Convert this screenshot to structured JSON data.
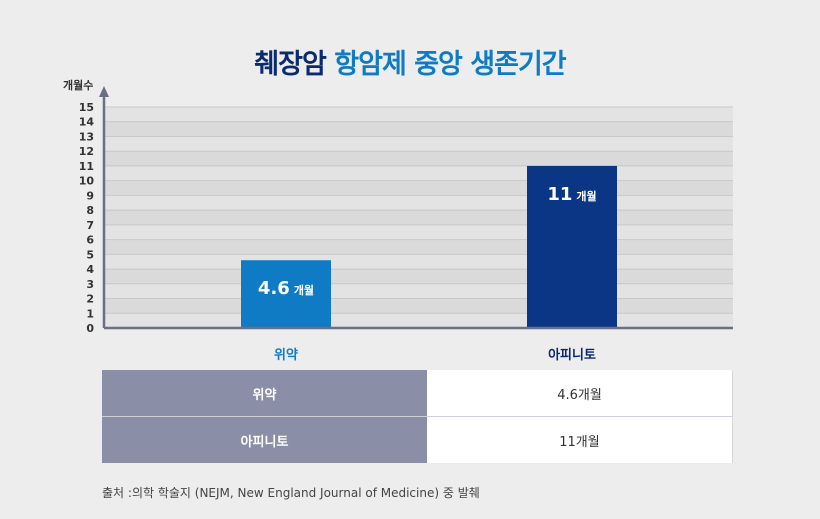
{
  "title": {
    "part1": "췌장암",
    "part2": "항암제 중앙 생존기간"
  },
  "colors": {
    "bar1": "#0f7bc4",
    "bar2": "#0b3686",
    "label1": "#0f7bc4",
    "label2": "#0b2a6f",
    "table_head": "#8a8ea6"
  },
  "chart_data": {
    "type": "bar",
    "title": "췌장암 항암제 중앙 생존기간",
    "ylabel": "개월수",
    "xlabel": "",
    "ylim": [
      0,
      15
    ],
    "yticks": [
      "0",
      "1",
      "2",
      "3",
      "4",
      "5",
      "6",
      "7",
      "8",
      "9",
      "10",
      "11",
      "12",
      "13",
      "14",
      "15"
    ],
    "categories": [
      "위약",
      "아피니토"
    ],
    "values": [
      4.6,
      11
    ],
    "value_labels": [
      {
        "num": "4.6",
        "unit": "개월"
      },
      {
        "num": "11",
        "unit": "개월"
      }
    ],
    "grid": true
  },
  "table": {
    "rows": [
      {
        "name": "위약",
        "value": "4.6개월"
      },
      {
        "name": "아피니토",
        "value": "11개월"
      }
    ]
  },
  "source": "출처 :의학 학술지 (NEJM, New England Journal of Medicine) 중 발췌"
}
